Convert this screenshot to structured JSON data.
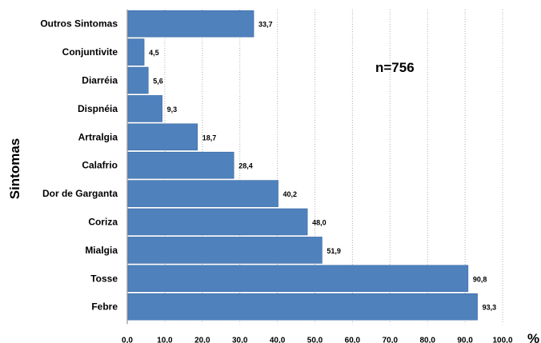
{
  "chart_data": {
    "type": "bar",
    "orientation": "horizontal",
    "categories": [
      "Outros Sintomas",
      "Conjuntivite",
      "Diarréia",
      "Dispnéia",
      "Artralgia",
      "Calafrio",
      "Dor de Garganta",
      "Coriza",
      "Mialgia",
      "Tosse",
      "Febre"
    ],
    "values": [
      33.7,
      4.5,
      5.6,
      9.3,
      18.7,
      28.4,
      40.2,
      48.0,
      51.9,
      90.8,
      93.3
    ],
    "data_labels": [
      "33,7",
      "4,5",
      "5,6",
      "9,3",
      "18,7",
      "28,4",
      "40,2",
      "48,0",
      "51,9",
      "90,8",
      "93,3"
    ],
    "xticks": [
      "0,0",
      "10,0",
      "20,0",
      "30,0",
      "40,0",
      "50,0",
      "60,0",
      "70,0",
      "80,0",
      "90,0",
      "100,0"
    ],
    "xlim": [
      0,
      100
    ],
    "xunit": "%",
    "ylabel": "Sintomas",
    "annotation": "n=756",
    "grid": "vertical-dotted",
    "bar_color": "#4f81bd"
  }
}
